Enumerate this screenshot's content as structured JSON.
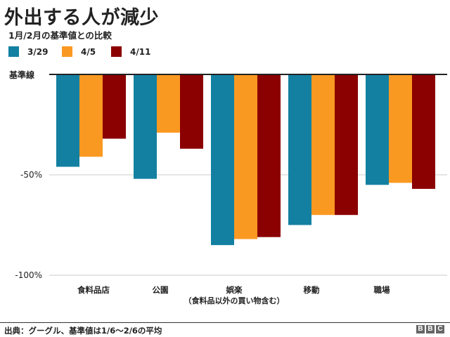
{
  "title": "外出する人が減少",
  "subtitle": "1月/2月の基準値との比較",
  "baseline_label": "基準線",
  "source": "出典：グーグル、基準値は1/6～2/6の平均",
  "brand": [
    "B",
    "B",
    "C"
  ],
  "colors": {
    "series1": "#1380a1",
    "series2": "#fa9922",
    "series3": "#8b0000",
    "gridline": "#cbcbcb",
    "baseline": "#222222"
  },
  "chart_data": {
    "type": "bar",
    "title": "外出する人が減少",
    "subtitle": "1月/2月の基準値との比較",
    "ylabel": "",
    "ylim": [
      -100,
      0
    ],
    "yticks": [
      -50,
      -100
    ],
    "ytick_labels": [
      "-50%",
      "-100%"
    ],
    "categories": [
      "食料品店",
      "公園",
      "娯楽",
      "移動",
      "職場"
    ],
    "category_sublabels": [
      "",
      "",
      "（食料品以外の買い物含む）",
      "",
      ""
    ],
    "series": [
      {
        "name": "3/29",
        "color": "#1380a1",
        "values": [
          -46,
          -52,
          -85,
          -75,
          -55
        ]
      },
      {
        "name": "4/5",
        "color": "#fa9922",
        "values": [
          -41,
          -29,
          -82,
          -70,
          -54
        ]
      },
      {
        "name": "4/11",
        "color": "#8b0000",
        "values": [
          -32,
          -37,
          -81,
          -70,
          -57
        ]
      }
    ]
  }
}
